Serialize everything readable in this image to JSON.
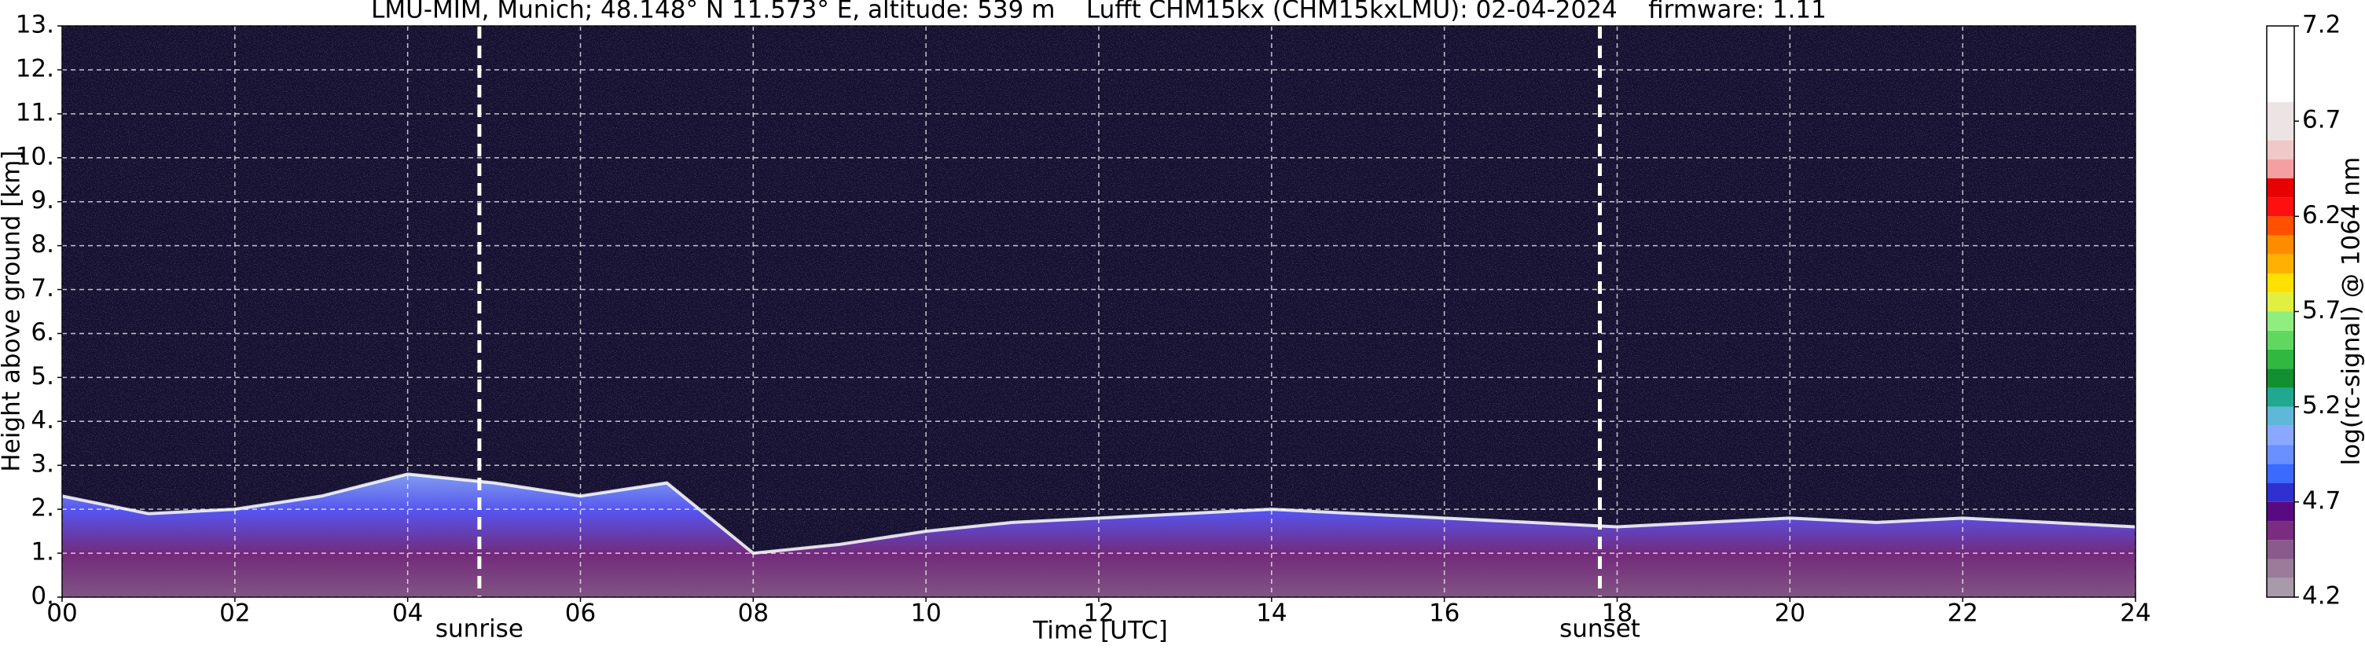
{
  "chart_data": {
    "type": "area",
    "title": "LMU-MIM, Munich; 48.148° N 11.573° E, altitude: 539 m    Lufft CHM15kx (CHM15kxLMU): 02-04-2024    firmware: 1.11",
    "xlabel": "Time [UTC]",
    "ylabel": "Height above ground [km]",
    "x": [
      0,
      1,
      2,
      3,
      4,
      5,
      6,
      7,
      8,
      9,
      10,
      11,
      12,
      13,
      14,
      15,
      16,
      17,
      18,
      19,
      20,
      21,
      22,
      23,
      24
    ],
    "values": [
      2.3,
      1.9,
      2.0,
      2.3,
      2.8,
      2.6,
      2.3,
      2.6,
      1.0,
      1.2,
      1.5,
      1.7,
      1.8,
      1.9,
      2.0,
      1.9,
      1.8,
      1.7,
      1.6,
      1.7,
      1.8,
      1.7,
      1.8,
      1.7,
      1.6
    ],
    "layer_color": "#5a5aff",
    "xlim": [
      0,
      24
    ],
    "xticks": [
      {
        "value": 0,
        "label": "00"
      },
      {
        "value": 2,
        "label": "02"
      },
      {
        "value": 4,
        "label": "04"
      },
      {
        "value": 6,
        "label": "06"
      },
      {
        "value": 8,
        "label": "08"
      },
      {
        "value": 10,
        "label": "10"
      },
      {
        "value": 12,
        "label": "12"
      },
      {
        "value": 14,
        "label": "14"
      },
      {
        "value": 16,
        "label": "16"
      },
      {
        "value": 18,
        "label": "18"
      },
      {
        "value": 20,
        "label": "20"
      },
      {
        "value": 22,
        "label": "22"
      },
      {
        "value": 24,
        "label": "24"
      }
    ],
    "ylim": [
      0,
      13
    ],
    "yticks": [
      {
        "value": 0,
        "label": "0."
      },
      {
        "value": 1,
        "label": "1."
      },
      {
        "value": 2,
        "label": "2."
      },
      {
        "value": 3,
        "label": "3."
      },
      {
        "value": 4,
        "label": "4."
      },
      {
        "value": 5,
        "label": "5."
      },
      {
        "value": 6,
        "label": "6."
      },
      {
        "value": 7,
        "label": "7."
      },
      {
        "value": 8,
        "label": "8."
      },
      {
        "value": 9,
        "label": "9."
      },
      {
        "value": 10,
        "label": "10."
      },
      {
        "value": 11,
        "label": "11."
      },
      {
        "value": 12,
        "label": "12."
      },
      {
        "value": 13,
        "label": "13."
      }
    ],
    "grid": true,
    "annotations": [
      {
        "x": 4.83,
        "label": "sunrise"
      },
      {
        "x": 17.8,
        "label": "sunset"
      }
    ],
    "colorbar": {
      "label": "log(rc-signal) @ 1064 nm",
      "lim": [
        4.2,
        7.2
      ],
      "ticks": [
        4.2,
        4.7,
        5.2,
        5.7,
        6.2,
        6.7,
        7.2
      ],
      "boundaries": [
        4.2,
        4.3,
        4.4,
        4.5,
        4.6,
        4.7,
        4.8,
        4.9,
        5.0,
        5.1,
        5.2,
        5.3,
        5.4,
        5.5,
        5.6,
        5.7,
        5.8,
        5.9,
        6.0,
        6.1,
        6.2,
        6.3,
        6.4,
        6.5,
        6.6,
        6.8,
        7.2
      ],
      "colors": [
        "#a89aa8",
        "#9a7c9a",
        "#8a5a8c",
        "#7a2c80",
        "#5a0a80",
        "#3030d0",
        "#3a6aff",
        "#6a8fff",
        "#8aa8ff",
        "#60b8d8",
        "#20a890",
        "#109030",
        "#30b840",
        "#60d860",
        "#90ee80",
        "#e0f040",
        "#ffe000",
        "#ffb000",
        "#ff8c00",
        "#ff5000",
        "#ff1010",
        "#e80000",
        "#f5a0a0",
        "#f0c8c8",
        "#ece4e4",
        "#ffffff"
      ]
    }
  }
}
